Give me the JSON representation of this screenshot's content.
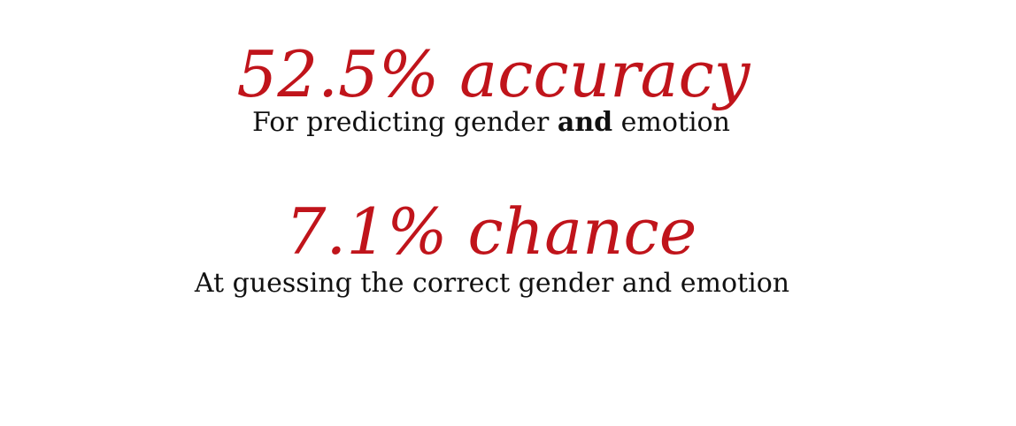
{
  "colors": {
    "accent": "#c0141b",
    "text": "#111111",
    "background": "#ffffff"
  },
  "stats": [
    {
      "headline": "52.5% accuracy",
      "subtitle_before": "For predicting gender ",
      "subtitle_bold": "and",
      "subtitle_after": " emotion"
    },
    {
      "headline": "7.1% chance",
      "subtitle": "At guessing the correct gender and emotion"
    }
  ]
}
